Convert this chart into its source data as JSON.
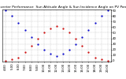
{
  "title": "Solar PV/Inverter Performance  Sun Altitude Angle & Sun Incidence Angle on PV Panels",
  "title_fontsize": 3.2,
  "background_color": "#ffffff",
  "grid_color": "#bbbbbb",
  "blue_color": "#0000cc",
  "red_color": "#cc0000",
  "ylim": [
    -2,
    92
  ],
  "yticks": [
    0,
    10,
    20,
    30,
    40,
    50,
    60,
    70,
    80,
    90
  ],
  "ytick_labels": [
    "0",
    "10",
    "20",
    "30",
    "40",
    "50",
    "60",
    "70",
    "80",
    "90"
  ],
  "x_hours": [
    4,
    5,
    6,
    7,
    8,
    9,
    10,
    11,
    12,
    13,
    14,
    15,
    16,
    17,
    18,
    19,
    20
  ],
  "blue_values": [
    90,
    80,
    68,
    55,
    42,
    30,
    20,
    12,
    8,
    12,
    20,
    30,
    42,
    55,
    68,
    80,
    90
  ],
  "red_values": [
    0,
    2,
    5,
    15,
    27,
    39,
    50,
    58,
    62,
    58,
    50,
    39,
    27,
    15,
    5,
    2,
    0
  ],
  "tick_fontsize": 2.8,
  "dot_size": 1.2
}
